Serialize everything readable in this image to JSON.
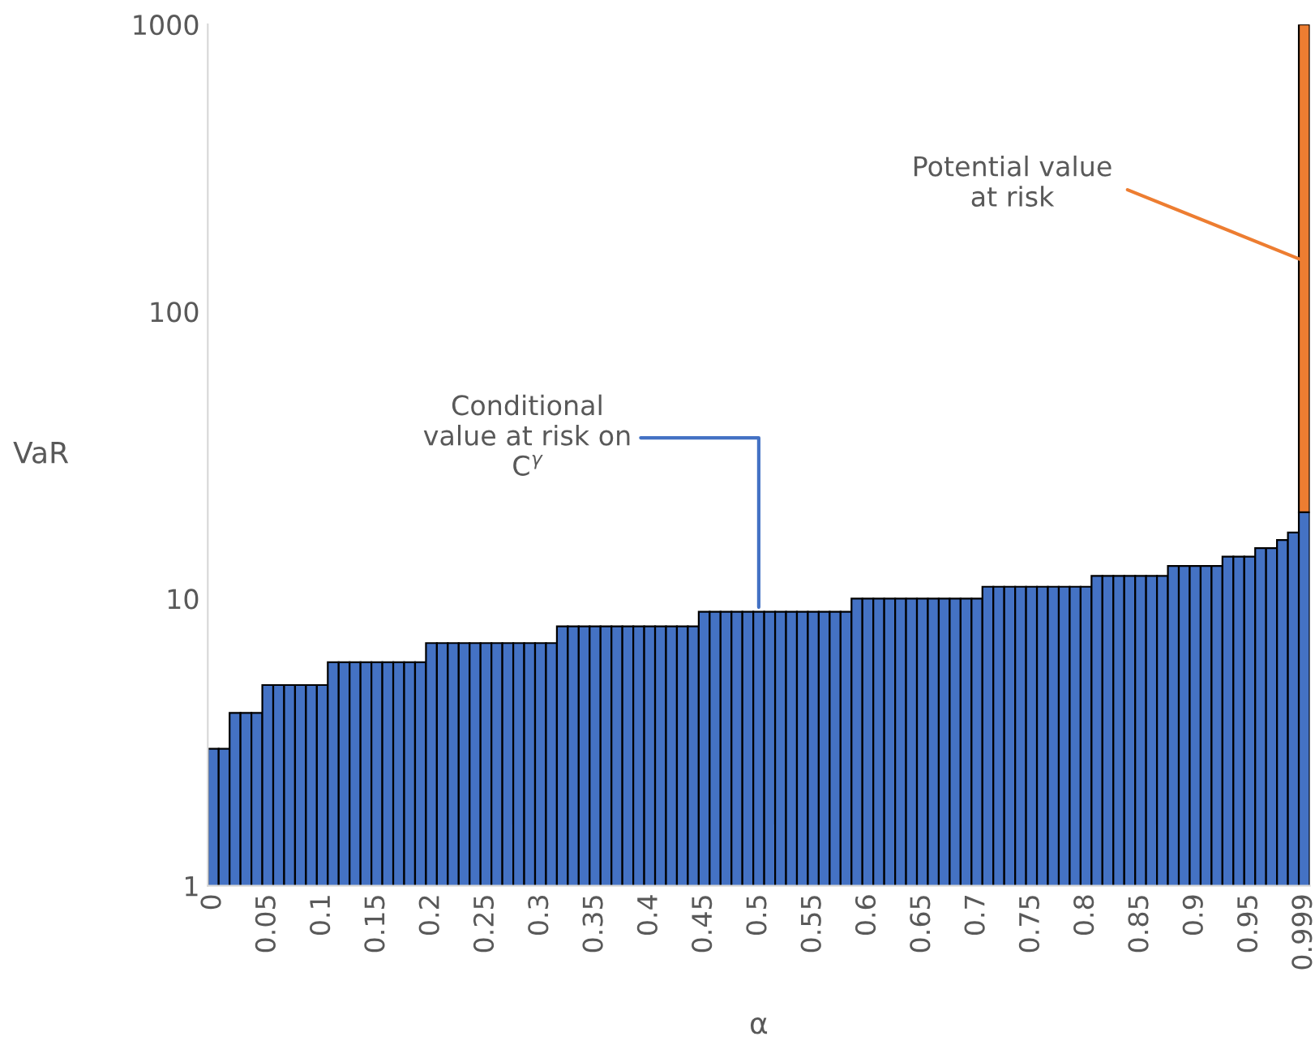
{
  "chart_data": {
    "type": "bar",
    "xlabel": "α",
    "ylabel": "VaR",
    "categories": [
      "0",
      null,
      null,
      null,
      null,
      "0.05",
      null,
      null,
      null,
      null,
      "0.1",
      null,
      null,
      null,
      null,
      "0.15",
      null,
      null,
      null,
      null,
      "0.2",
      null,
      null,
      null,
      null,
      "0.25",
      null,
      null,
      null,
      null,
      "0.3",
      null,
      null,
      null,
      null,
      "0.35",
      null,
      null,
      null,
      null,
      "0.4",
      null,
      null,
      null,
      null,
      "0.45",
      null,
      null,
      null,
      null,
      "0.5",
      null,
      null,
      null,
      null,
      "0.55",
      null,
      null,
      null,
      null,
      "0.6",
      null,
      null,
      null,
      null,
      "0.65",
      null,
      null,
      null,
      null,
      "0.7",
      null,
      null,
      null,
      null,
      "0.75",
      null,
      null,
      null,
      null,
      "0.8",
      null,
      null,
      null,
      null,
      "0.85",
      null,
      null,
      null,
      null,
      "0.9",
      null,
      null,
      null,
      null,
      "0.95",
      null,
      null,
      null,
      null,
      "0.999"
    ],
    "stacked": true,
    "log": "y",
    "ylim": [
      1,
      1000
    ],
    "yticks": [
      1,
      10,
      100,
      1000
    ],
    "grid": false,
    "legend": false,
    "series": [
      {
        "color": "#4472c4",
        "values": [
          3,
          3,
          4,
          4,
          4,
          5,
          5,
          5,
          5,
          5,
          5,
          6,
          6,
          6,
          6,
          6,
          6,
          6,
          6,
          6,
          7,
          7,
          7,
          7,
          7,
          7,
          7,
          7,
          7,
          7,
          7,
          7,
          8,
          8,
          8,
          8,
          8,
          8,
          8,
          8,
          8,
          8,
          8,
          8,
          8,
          9,
          9,
          9,
          9,
          9,
          9,
          9,
          9,
          9,
          9,
          9,
          9,
          9,
          9,
          10,
          10,
          10,
          10,
          10,
          10,
          10,
          10,
          10,
          10,
          10,
          10,
          11,
          11,
          11,
          11,
          11,
          11,
          11,
          11,
          11,
          11,
          12,
          12,
          12,
          12,
          12,
          12,
          12,
          13,
          13,
          13,
          13,
          13,
          14,
          14,
          14,
          15,
          15,
          16,
          17,
          20
        ]
      },
      {
        "color": "#ed7d31",
        "values": [
          null,
          null,
          null,
          null,
          null,
          null,
          null,
          null,
          null,
          null,
          null,
          null,
          null,
          null,
          null,
          null,
          null,
          null,
          null,
          null,
          null,
          null,
          null,
          null,
          null,
          null,
          null,
          null,
          null,
          null,
          null,
          null,
          null,
          null,
          null,
          null,
          null,
          null,
          null,
          null,
          null,
          null,
          null,
          null,
          null,
          null,
          null,
          null,
          null,
          null,
          null,
          null,
          null,
          null,
          null,
          null,
          null,
          null,
          null,
          null,
          null,
          null,
          null,
          null,
          null,
          null,
          null,
          null,
          null,
          null,
          null,
          null,
          null,
          null,
          null,
          null,
          null,
          null,
          null,
          null,
          null,
          null,
          null,
          null,
          null,
          null,
          null,
          null,
          null,
          null,
          null,
          null,
          null,
          null,
          null,
          null,
          null,
          null,
          null,
          null,
          980
        ]
      }
    ],
    "annotations": [
      {
        "text": "Conditional\nvalue at risk on\nC$^{γ}$",
        "x": "0.5",
        "y": 9
      },
      {
        "text": "Potential value\nat risk",
        "x": "0.999",
        "y": 150
      }
    ]
  }
}
